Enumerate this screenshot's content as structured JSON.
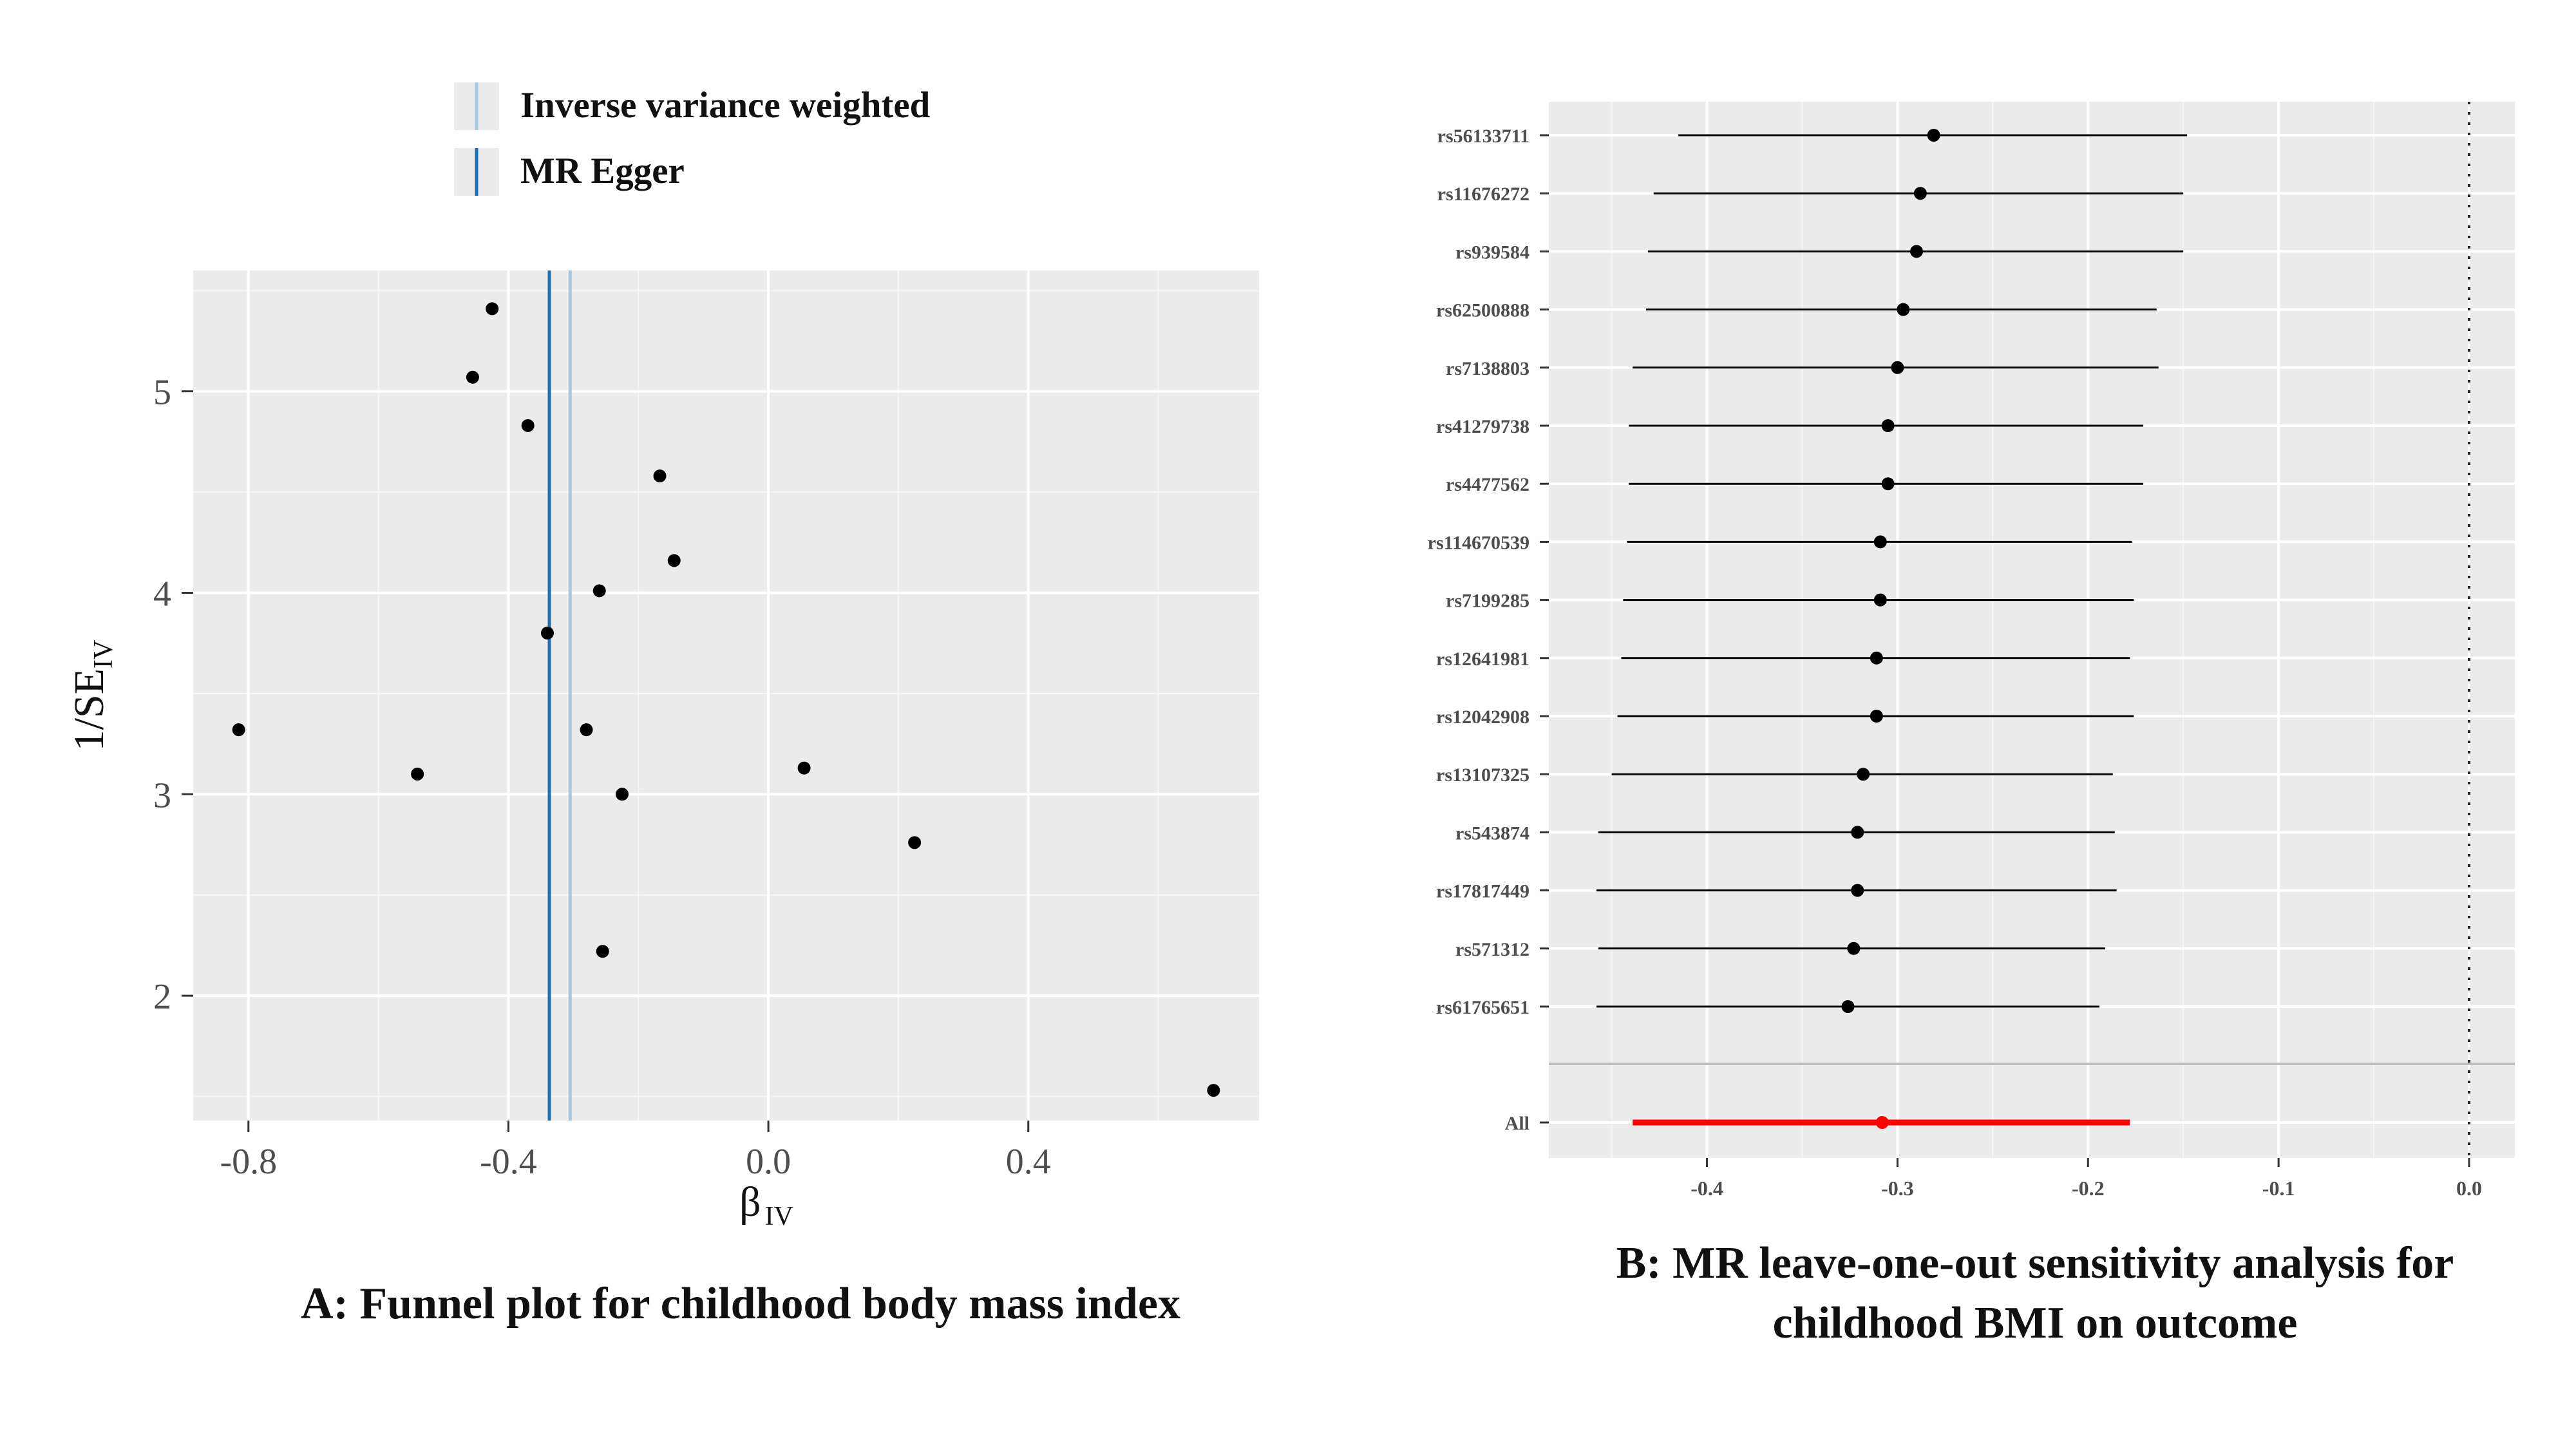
{
  "chart_data": [
    {
      "type": "scatter",
      "panel": "A",
      "caption": "A: Funnel plot for childhood body mass index",
      "ylabel_main": "1/SE",
      "ylabel_sub": "IV",
      "xlabel_main": "β",
      "xlabel_sub": "IV",
      "xlim": [
        -0.885,
        0.755
      ],
      "ylim": [
        1.38,
        5.6
      ],
      "xticks": [
        -0.8,
        -0.4,
        0.0,
        0.4
      ],
      "xtick_labels": [
        "-0.8",
        "-0.4",
        "0.0",
        "0.4"
      ],
      "yticks": [
        2,
        3,
        4,
        5
      ],
      "ytick_labels": [
        "2",
        "3",
        "4",
        "5"
      ],
      "grid": true,
      "legend_position": "top",
      "lines": [
        {
          "name": "Inverse variance weighted",
          "x": -0.305,
          "color": "#a6c8e0"
        },
        {
          "name": "MR Egger",
          "x": -0.337,
          "color": "#1f6fb4"
        }
      ],
      "points": [
        {
          "x": -0.425,
          "y": 5.41
        },
        {
          "x": -0.455,
          "y": 5.07
        },
        {
          "x": -0.37,
          "y": 4.83
        },
        {
          "x": -0.167,
          "y": 4.58
        },
        {
          "x": -0.145,
          "y": 4.16
        },
        {
          "x": -0.26,
          "y": 4.01
        },
        {
          "x": -0.34,
          "y": 3.8
        },
        {
          "x": -0.815,
          "y": 3.32
        },
        {
          "x": -0.28,
          "y": 3.32
        },
        {
          "x": -0.54,
          "y": 3.1
        },
        {
          "x": -0.225,
          "y": 3.0
        },
        {
          "x": 0.055,
          "y": 3.13
        },
        {
          "x": 0.225,
          "y": 2.76
        },
        {
          "x": -0.255,
          "y": 2.22
        },
        {
          "x": 0.685,
          "y": 1.53
        }
      ]
    },
    {
      "type": "forest",
      "panel": "B",
      "caption_lines": [
        "B: MR leave-one-out sensitivity analysis for",
        "childhood BMI on outcome"
      ],
      "xlim": [
        -0.483,
        0.024
      ],
      "xticks": [
        -0.4,
        -0.3,
        -0.2,
        -0.1,
        0.0
      ],
      "xtick_labels": [
        "-0.4",
        "-0.3",
        "-0.2",
        "-0.1",
        "0.0"
      ],
      "reference_x": 0,
      "grid": true,
      "rows": [
        {
          "label": "rs56133711",
          "est": -0.281,
          "lo": -0.415,
          "hi": -0.148
        },
        {
          "label": "rs11676272",
          "est": -0.288,
          "lo": -0.428,
          "hi": -0.15
        },
        {
          "label": "rs939584",
          "est": -0.29,
          "lo": -0.431,
          "hi": -0.15
        },
        {
          "label": "rs62500888",
          "est": -0.297,
          "lo": -0.432,
          "hi": -0.164
        },
        {
          "label": "rs7138803",
          "est": -0.3,
          "lo": -0.439,
          "hi": -0.163
        },
        {
          "label": "rs41279738",
          "est": -0.305,
          "lo": -0.441,
          "hi": -0.171
        },
        {
          "label": "rs4477562",
          "est": -0.305,
          "lo": -0.441,
          "hi": -0.171
        },
        {
          "label": "rs114670539",
          "est": -0.309,
          "lo": -0.442,
          "hi": -0.177
        },
        {
          "label": "rs7199285",
          "est": -0.309,
          "lo": -0.444,
          "hi": -0.176
        },
        {
          "label": "rs12641981",
          "est": -0.311,
          "lo": -0.445,
          "hi": -0.178
        },
        {
          "label": "rs12042908",
          "est": -0.311,
          "lo": -0.447,
          "hi": -0.176
        },
        {
          "label": "rs13107325",
          "est": -0.318,
          "lo": -0.45,
          "hi": -0.187
        },
        {
          "label": "rs543874",
          "est": -0.321,
          "lo": -0.457,
          "hi": -0.186
        },
        {
          "label": "rs17817449",
          "est": -0.321,
          "lo": -0.458,
          "hi": -0.185
        },
        {
          "label": "rs571312",
          "est": -0.323,
          "lo": -0.457,
          "hi": -0.191
        },
        {
          "label": "rs61765651",
          "est": -0.326,
          "lo": -0.458,
          "hi": -0.194
        }
      ],
      "overall": {
        "label": "All",
        "est": -0.308,
        "lo": -0.439,
        "hi": -0.178,
        "color": "#ff0000"
      }
    }
  ]
}
